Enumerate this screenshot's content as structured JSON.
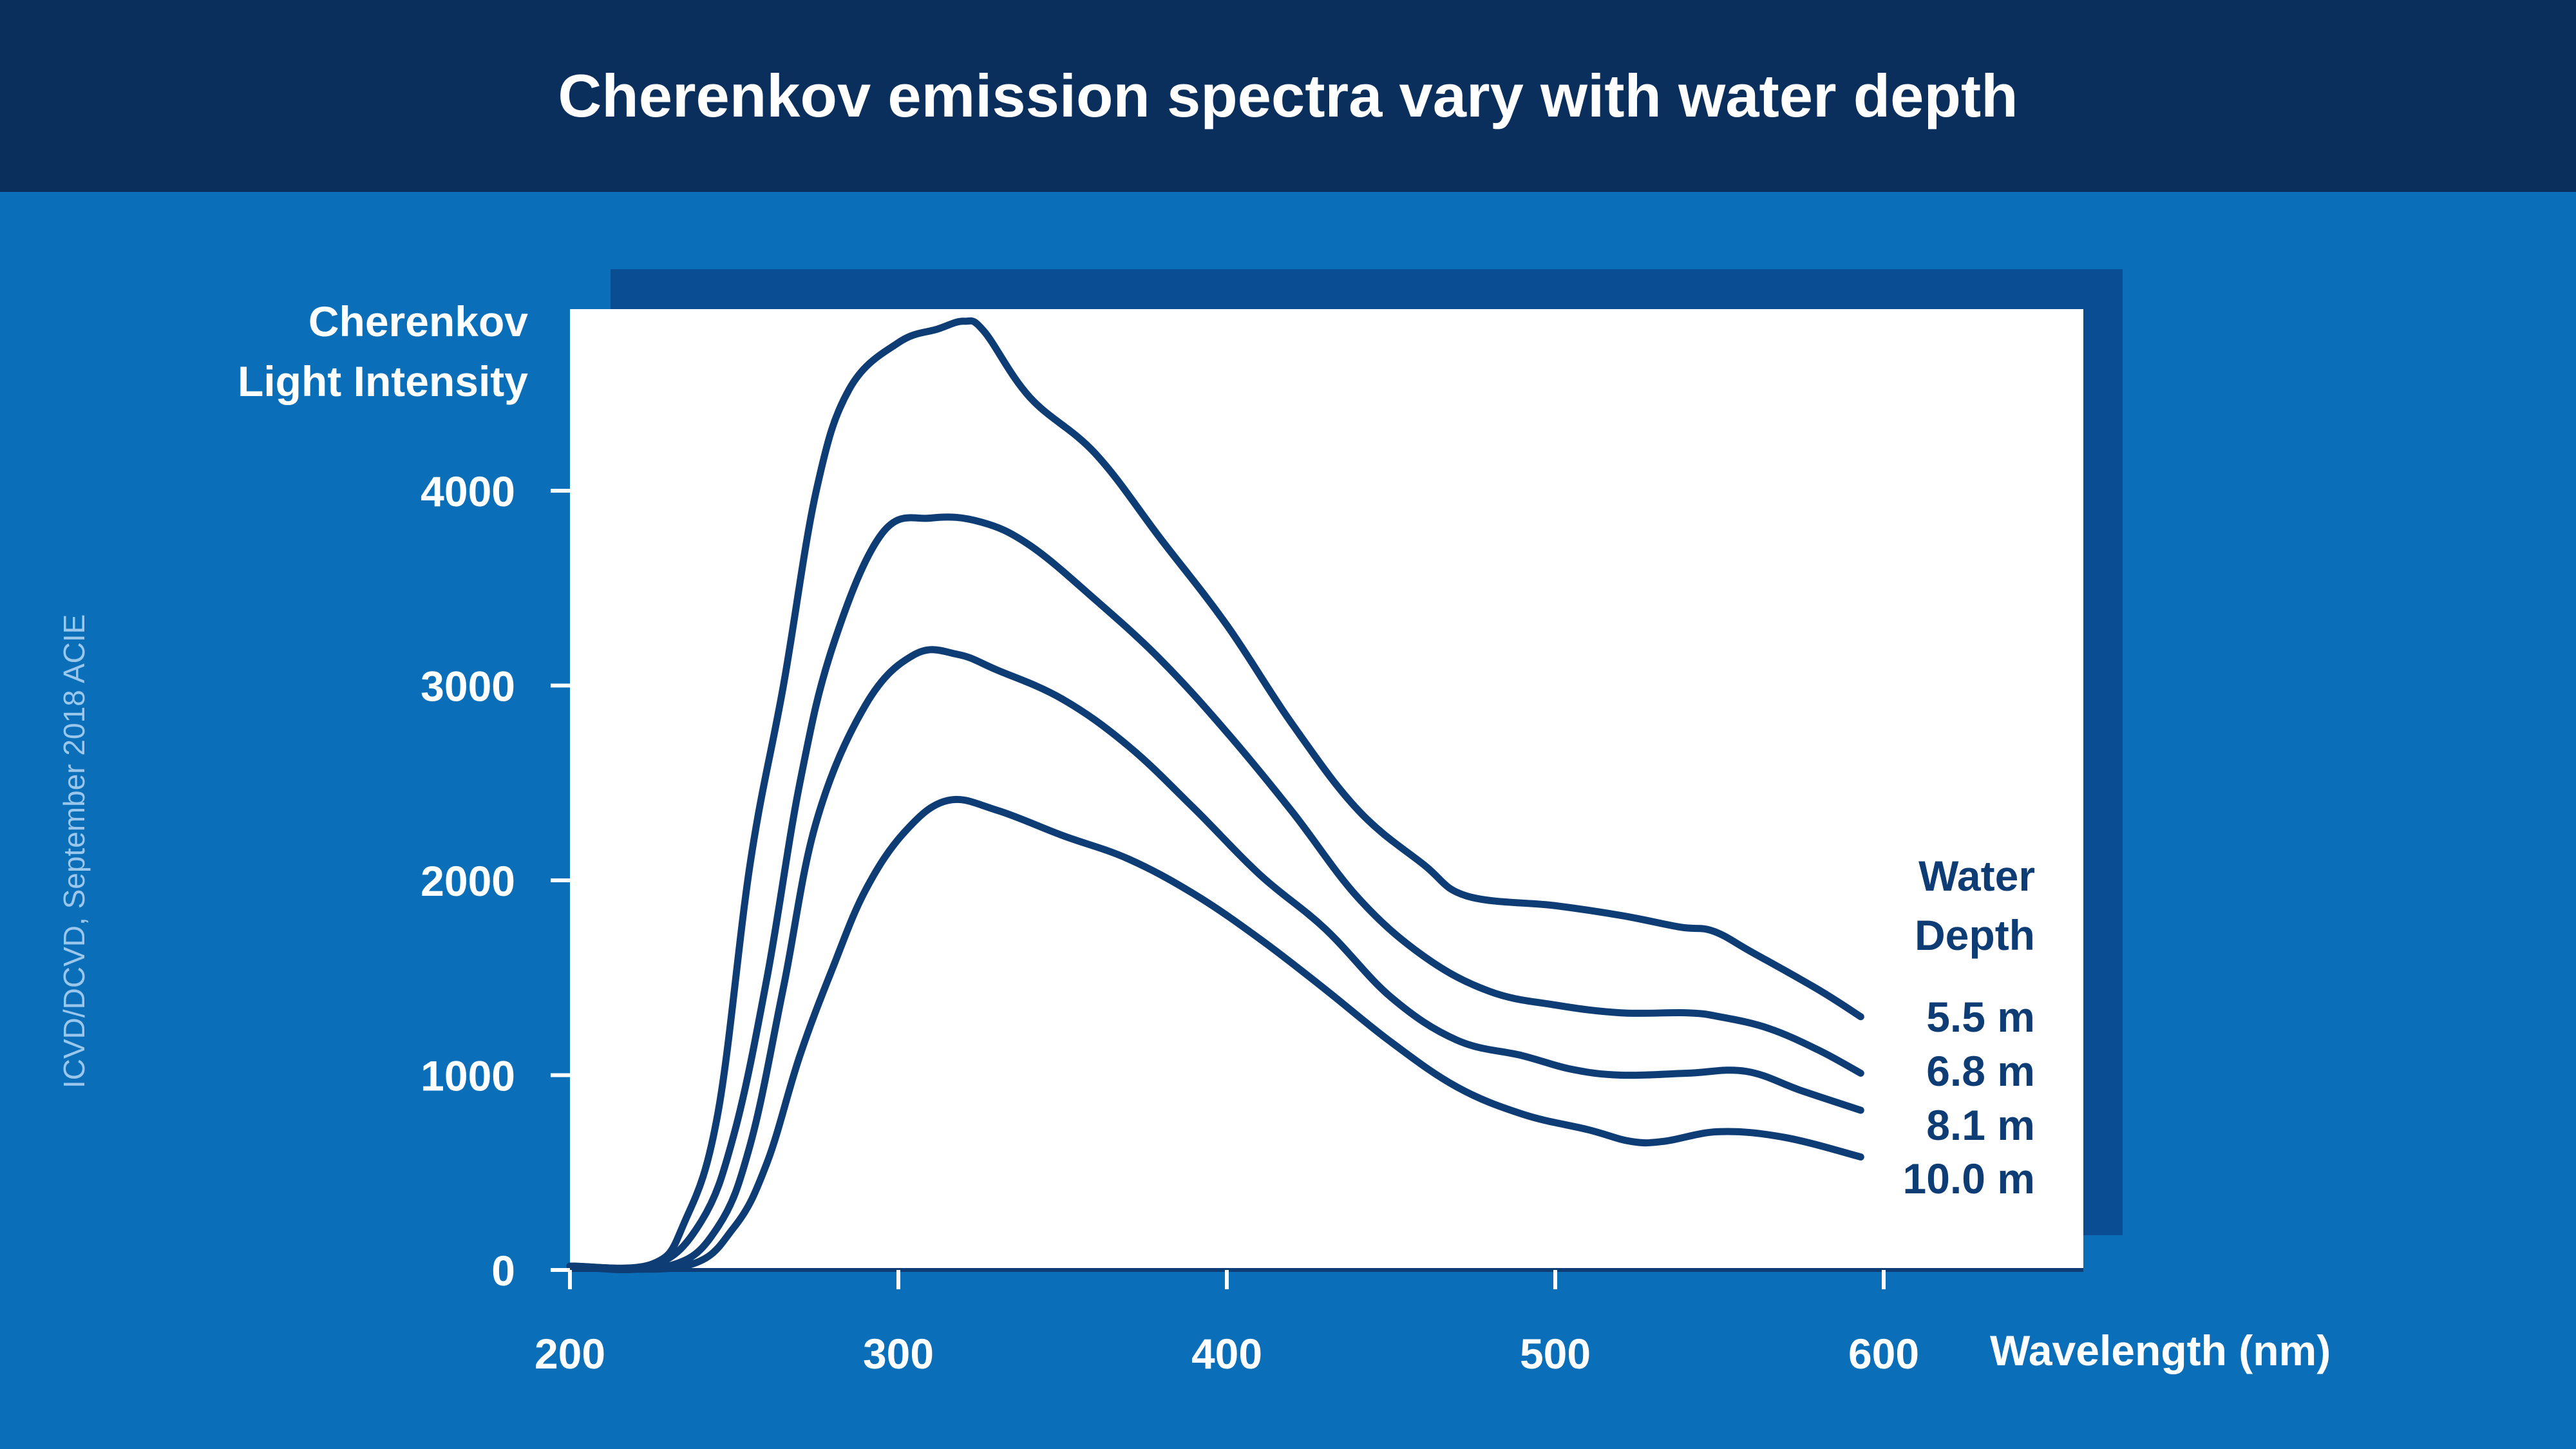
{
  "header": {
    "title": "Cherenkov emission spectra vary with water depth"
  },
  "credit": "ICVD/DCVD, September 2018 ACIE",
  "colors": {
    "header_bg": "#0b2f5c",
    "page_bg": "#0a6fb8",
    "shadow": "#0b4d93",
    "plot_bg": "#ffffff",
    "line": "#0e3c74",
    "text_light": "#ffffff"
  },
  "chart_data": {
    "type": "line",
    "ylabel_lines": [
      "Cherenkov",
      "Light Intensity"
    ],
    "xlabel": "Wavelength (nm)",
    "xlim": [
      200,
      660
    ],
    "ylim": [
      0,
      4900
    ],
    "x_ticks": [
      200,
      300,
      400,
      500,
      600
    ],
    "y_ticks": [
      0,
      1000,
      2000,
      3000,
      4000
    ],
    "legend_title_lines": [
      "Water",
      "Depth"
    ],
    "legend_position": "right",
    "grid": false,
    "series": [
      {
        "name": "5.5 m",
        "points": [
          [
            200,
            20
          ],
          [
            225,
            30
          ],
          [
            235,
            250
          ],
          [
            245,
            800
          ],
          [
            255,
            2100
          ],
          [
            265,
            3000
          ],
          [
            275,
            4000
          ],
          [
            285,
            4520
          ],
          [
            300,
            4760
          ],
          [
            312,
            4830
          ],
          [
            320,
            4870
          ],
          [
            326,
            4820
          ],
          [
            340,
            4480
          ],
          [
            360,
            4190
          ],
          [
            380,
            3750
          ],
          [
            400,
            3310
          ],
          [
            420,
            2800
          ],
          [
            440,
            2360
          ],
          [
            460,
            2080
          ],
          [
            473,
            1920
          ],
          [
            500,
            1870
          ],
          [
            520,
            1820
          ],
          [
            538,
            1760
          ],
          [
            548,
            1740
          ],
          [
            560,
            1630
          ],
          [
            580,
            1440
          ],
          [
            593,
            1300
          ]
        ]
      },
      {
        "name": "6.8 m",
        "points": [
          [
            200,
            20
          ],
          [
            225,
            20
          ],
          [
            240,
            250
          ],
          [
            250,
            700
          ],
          [
            260,
            1500
          ],
          [
            270,
            2500
          ],
          [
            280,
            3200
          ],
          [
            295,
            3780
          ],
          [
            310,
            3860
          ],
          [
            325,
            3840
          ],
          [
            340,
            3720
          ],
          [
            360,
            3440
          ],
          [
            380,
            3130
          ],
          [
            400,
            2760
          ],
          [
            420,
            2350
          ],
          [
            440,
            1910
          ],
          [
            460,
            1610
          ],
          [
            480,
            1430
          ],
          [
            500,
            1360
          ],
          [
            520,
            1320
          ],
          [
            540,
            1320
          ],
          [
            550,
            1300
          ],
          [
            565,
            1240
          ],
          [
            580,
            1130
          ],
          [
            593,
            1010
          ]
        ]
      },
      {
        "name": "8.1 m",
        "points": [
          [
            200,
            20
          ],
          [
            230,
            20
          ],
          [
            245,
            220
          ],
          [
            255,
            650
          ],
          [
            265,
            1450
          ],
          [
            275,
            2300
          ],
          [
            290,
            2900
          ],
          [
            305,
            3160
          ],
          [
            318,
            3160
          ],
          [
            330,
            3080
          ],
          [
            350,
            2930
          ],
          [
            370,
            2690
          ],
          [
            390,
            2370
          ],
          [
            410,
            2030
          ],
          [
            430,
            1750
          ],
          [
            450,
            1400
          ],
          [
            470,
            1180
          ],
          [
            490,
            1100
          ],
          [
            505,
            1030
          ],
          [
            520,
            1000
          ],
          [
            540,
            1010
          ],
          [
            558,
            1020
          ],
          [
            575,
            920
          ],
          [
            593,
            820
          ]
        ]
      },
      {
        "name": "10.0 m",
        "points": [
          [
            200,
            20
          ],
          [
            235,
            20
          ],
          [
            250,
            220
          ],
          [
            260,
            550
          ],
          [
            270,
            1100
          ],
          [
            280,
            1550
          ],
          [
            290,
            1950
          ],
          [
            302,
            2250
          ],
          [
            315,
            2410
          ],
          [
            330,
            2360
          ],
          [
            350,
            2230
          ],
          [
            370,
            2110
          ],
          [
            390,
            1930
          ],
          [
            410,
            1700
          ],
          [
            430,
            1440
          ],
          [
            450,
            1170
          ],
          [
            470,
            940
          ],
          [
            490,
            800
          ],
          [
            510,
            720
          ],
          [
            523,
            660
          ],
          [
            533,
            660
          ],
          [
            550,
            710
          ],
          [
            570,
            680
          ],
          [
            593,
            580
          ]
        ]
      }
    ]
  }
}
